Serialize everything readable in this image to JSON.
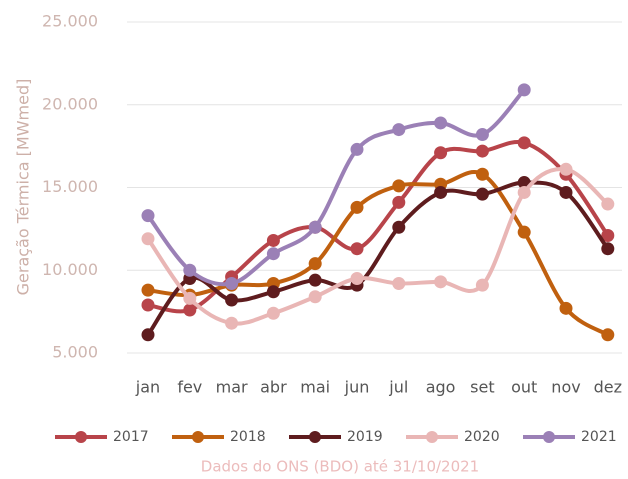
{
  "chart_data": {
    "type": "line",
    "ylabel": "Geração Térmica [MWmed]",
    "footnote": "Dados do ONS (BDO) até 31/10/2021",
    "categories": [
      "jan",
      "fev",
      "mar",
      "abr",
      "mai",
      "jun",
      "jul",
      "ago",
      "set",
      "out",
      "nov",
      "dez"
    ],
    "ylim": [
      5000,
      25000
    ],
    "yticks": [
      {
        "value": 5000,
        "label": "5.000"
      },
      {
        "value": 10000,
        "label": "10.000"
      },
      {
        "value": 15000,
        "label": "15.000"
      },
      {
        "value": 20000,
        "label": "20.000"
      },
      {
        "value": 25000,
        "label": "25.000"
      }
    ],
    "grid": true,
    "legend": "bottom",
    "series": [
      {
        "name": "2017",
        "color": "#b8444a",
        "values": [
          7900,
          7600,
          9600,
          11800,
          12600,
          11300,
          14100,
          17100,
          17200,
          17700,
          15800,
          12100
        ]
      },
      {
        "name": "2018",
        "color": "#c0600f",
        "values": [
          8800,
          8500,
          9100,
          9200,
          10400,
          13800,
          15100,
          15200,
          15800,
          12300,
          7700,
          6100
        ]
      },
      {
        "name": "2019",
        "color": "#5e1c1e",
        "values": [
          6100,
          9500,
          8200,
          8700,
          9400,
          9100,
          12600,
          14700,
          14600,
          15300,
          14700,
          11300
        ]
      },
      {
        "name": "2020",
        "color": "#e9b6b5",
        "values": [
          11900,
          8300,
          6800,
          7400,
          8400,
          9500,
          9200,
          9300,
          9100,
          14700,
          16100,
          14000
        ]
      },
      {
        "name": "2021",
        "color": "#9b80b6",
        "values": [
          13300,
          10000,
          9200,
          11000,
          12600,
          17300,
          18500,
          18900,
          18200,
          20900,
          null,
          null
        ]
      }
    ]
  }
}
